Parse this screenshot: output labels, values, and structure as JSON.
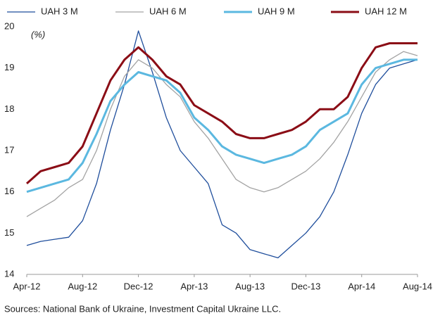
{
  "chart_data": {
    "type": "line",
    "y_label": "(%)",
    "source": "Sources: National Bank of Ukraine, Investment Capital Ukraine LLC.",
    "categories": [
      "Apr-12",
      null,
      null,
      null,
      "Aug-12",
      null,
      null,
      null,
      "Dec-12",
      null,
      null,
      null,
      "Apr-13",
      null,
      null,
      null,
      "Aug-13",
      null,
      null,
      null,
      "Dec-13",
      null,
      null,
      null,
      "Apr-14",
      null,
      null,
      null,
      "Aug-14"
    ],
    "series": [
      {
        "name": "UAH 3 M",
        "color": "#1f4e9c",
        "values": [
          14.7,
          14.8,
          14.85,
          14.9,
          15.3,
          16.2,
          17.5,
          18.6,
          19.9,
          18.9,
          17.8,
          17.0,
          16.6,
          16.2,
          15.2,
          15.0,
          14.6,
          14.5,
          14.4,
          14.7,
          15.0,
          15.4,
          16.0,
          16.9,
          17.9,
          18.6,
          19.0,
          19.1,
          19.2
        ]
      },
      {
        "name": "UAH 6 M",
        "color": "#a3a3a3",
        "values": [
          15.4,
          15.6,
          15.8,
          16.1,
          16.3,
          17.0,
          18.0,
          18.8,
          19.2,
          19.0,
          18.6,
          18.3,
          17.7,
          17.3,
          16.8,
          16.3,
          16.1,
          16.0,
          16.1,
          16.3,
          16.5,
          16.8,
          17.2,
          17.7,
          18.3,
          18.9,
          19.2,
          19.4,
          19.3
        ]
      },
      {
        "name": "UAH 9 M",
        "color": "#5bb8e0",
        "values": [
          16.0,
          16.1,
          16.2,
          16.3,
          16.7,
          17.4,
          18.2,
          18.6,
          18.9,
          18.8,
          18.7,
          18.4,
          17.8,
          17.5,
          17.1,
          16.9,
          16.8,
          16.7,
          16.8,
          16.9,
          17.1,
          17.5,
          17.7,
          17.9,
          18.6,
          19.0,
          19.1,
          19.2,
          19.2
        ]
      },
      {
        "name": "UAH 12 M",
        "color": "#8b0d16",
        "values": [
          16.2,
          16.5,
          16.6,
          16.7,
          17.1,
          17.9,
          18.7,
          19.2,
          19.5,
          19.2,
          18.8,
          18.6,
          18.1,
          17.9,
          17.7,
          17.4,
          17.3,
          17.3,
          17.4,
          17.5,
          17.7,
          18.0,
          18.0,
          18.3,
          19.0,
          19.5,
          19.6,
          19.6,
          19.6
        ]
      }
    ],
    "ylim": [
      14,
      20
    ],
    "yticks": [
      14,
      15,
      16,
      17,
      18,
      19,
      20
    ]
  }
}
